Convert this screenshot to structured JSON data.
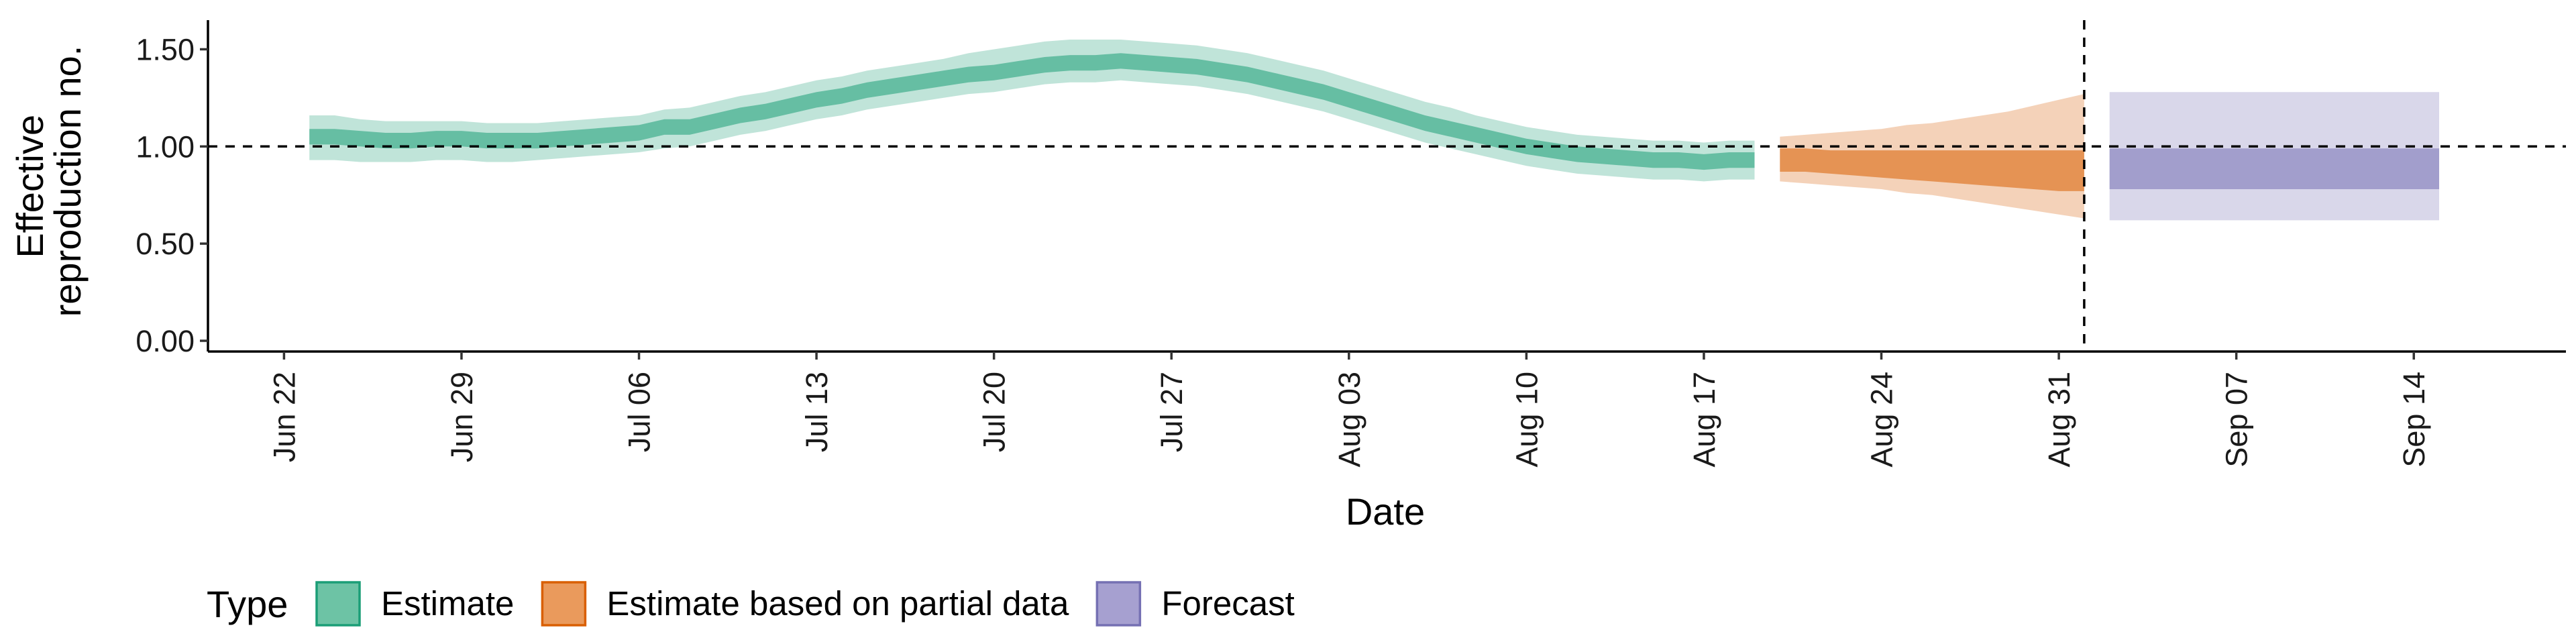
{
  "chart_data": {
    "type": "area",
    "xlabel": "Date",
    "ylabel": [
      "Effective",
      "reproduction no."
    ],
    "ylim": [
      0,
      1.65
    ],
    "y_ticks": [
      {
        "value": 0.0,
        "label": "0.00"
      },
      {
        "value": 0.5,
        "label": "0.50"
      },
      {
        "value": 1.0,
        "label": "1.00"
      },
      {
        "value": 1.5,
        "label": "1.50"
      }
    ],
    "x_ticks": [
      {
        "date": "2020-06-22",
        "label": "Jun 22"
      },
      {
        "date": "2020-06-29",
        "label": "Jun 29"
      },
      {
        "date": "2020-07-06",
        "label": "Jul 06"
      },
      {
        "date": "2020-07-13",
        "label": "Jul 13"
      },
      {
        "date": "2020-07-20",
        "label": "Jul 20"
      },
      {
        "date": "2020-07-27",
        "label": "Jul 27"
      },
      {
        "date": "2020-08-03",
        "label": "Aug 03"
      },
      {
        "date": "2020-08-10",
        "label": "Aug 10"
      },
      {
        "date": "2020-08-17",
        "label": "Aug 17"
      },
      {
        "date": "2020-08-24",
        "label": "Aug 24"
      },
      {
        "date": "2020-08-31",
        "label": "Aug 31"
      },
      {
        "date": "2020-09-07",
        "label": "Sep 07"
      },
      {
        "date": "2020-09-14",
        "label": "Sep 14"
      }
    ],
    "xlim": [
      "2020-06-19",
      "2020-09-20"
    ],
    "hline": 1.0,
    "vline": "2020-09-01",
    "legend": {
      "title": "Type",
      "position": "bottom-left",
      "items": [
        {
          "label": "Estimate",
          "fill": "#6dc3a5",
          "border": "#1b9e77"
        },
        {
          "label": "Estimate based on partial data",
          "fill": "#ea9a5c",
          "border": "#d95f02"
        },
        {
          "label": "Forecast",
          "fill": "#a6a0d0",
          "border": "#7570b3"
        }
      ]
    },
    "series": [
      {
        "name": "Estimate",
        "color": "#1b9e77",
        "dates": [
          "2020-06-23",
          "2020-06-24",
          "2020-06-25",
          "2020-06-26",
          "2020-06-27",
          "2020-06-28",
          "2020-06-29",
          "2020-06-30",
          "2020-07-01",
          "2020-07-02",
          "2020-07-03",
          "2020-07-04",
          "2020-07-05",
          "2020-07-06",
          "2020-07-07",
          "2020-07-08",
          "2020-07-09",
          "2020-07-10",
          "2020-07-11",
          "2020-07-12",
          "2020-07-13",
          "2020-07-14",
          "2020-07-15",
          "2020-07-16",
          "2020-07-17",
          "2020-07-18",
          "2020-07-19",
          "2020-07-20",
          "2020-07-21",
          "2020-07-22",
          "2020-07-23",
          "2020-07-24",
          "2020-07-25",
          "2020-07-26",
          "2020-07-27",
          "2020-07-28",
          "2020-07-29",
          "2020-07-30",
          "2020-07-31",
          "2020-08-01",
          "2020-08-02",
          "2020-08-03",
          "2020-08-04",
          "2020-08-05",
          "2020-08-06",
          "2020-08-07",
          "2020-08-08",
          "2020-08-09",
          "2020-08-10",
          "2020-08-11",
          "2020-08-12",
          "2020-08-13",
          "2020-08-14",
          "2020-08-15",
          "2020-08-16",
          "2020-08-17",
          "2020-08-18",
          "2020-08-19"
        ],
        "median": [
          1.05,
          1.05,
          1.04,
          1.03,
          1.03,
          1.04,
          1.04,
          1.03,
          1.03,
          1.03,
          1.04,
          1.05,
          1.06,
          1.07,
          1.1,
          1.1,
          1.13,
          1.16,
          1.18,
          1.21,
          1.24,
          1.26,
          1.29,
          1.31,
          1.33,
          1.35,
          1.37,
          1.38,
          1.4,
          1.42,
          1.43,
          1.43,
          1.44,
          1.43,
          1.42,
          1.41,
          1.39,
          1.37,
          1.34,
          1.31,
          1.28,
          1.24,
          1.2,
          1.16,
          1.12,
          1.09,
          1.06,
          1.03,
          1.0,
          0.98,
          0.96,
          0.95,
          0.94,
          0.93,
          0.93,
          0.92,
          0.93,
          0.93
        ],
        "lower_50": [
          1.01,
          1.01,
          1.0,
          0.99,
          0.99,
          1.0,
          1.0,
          0.99,
          0.99,
          0.99,
          1.0,
          1.01,
          1.02,
          1.03,
          1.06,
          1.06,
          1.09,
          1.12,
          1.14,
          1.17,
          1.2,
          1.22,
          1.25,
          1.27,
          1.29,
          1.31,
          1.33,
          1.34,
          1.36,
          1.38,
          1.39,
          1.39,
          1.4,
          1.39,
          1.38,
          1.37,
          1.35,
          1.33,
          1.3,
          1.27,
          1.24,
          1.2,
          1.16,
          1.12,
          1.08,
          1.05,
          1.02,
          0.99,
          0.96,
          0.94,
          0.92,
          0.91,
          0.9,
          0.89,
          0.89,
          0.88,
          0.89,
          0.89
        ],
        "upper_50": [
          1.09,
          1.09,
          1.08,
          1.07,
          1.07,
          1.08,
          1.08,
          1.07,
          1.07,
          1.07,
          1.08,
          1.09,
          1.1,
          1.11,
          1.14,
          1.14,
          1.17,
          1.2,
          1.22,
          1.25,
          1.28,
          1.3,
          1.33,
          1.35,
          1.37,
          1.39,
          1.41,
          1.42,
          1.44,
          1.46,
          1.47,
          1.47,
          1.48,
          1.47,
          1.46,
          1.45,
          1.43,
          1.41,
          1.38,
          1.35,
          1.32,
          1.28,
          1.24,
          1.2,
          1.16,
          1.13,
          1.1,
          1.07,
          1.04,
          1.02,
          1.0,
          0.99,
          0.98,
          0.97,
          0.97,
          0.96,
          0.97,
          0.97
        ],
        "lower_90": [
          0.93,
          0.93,
          0.92,
          0.92,
          0.92,
          0.93,
          0.93,
          0.92,
          0.92,
          0.93,
          0.94,
          0.95,
          0.96,
          0.97,
          0.99,
          1.0,
          1.03,
          1.06,
          1.08,
          1.11,
          1.14,
          1.16,
          1.19,
          1.21,
          1.23,
          1.25,
          1.27,
          1.28,
          1.3,
          1.32,
          1.33,
          1.33,
          1.34,
          1.33,
          1.32,
          1.31,
          1.29,
          1.27,
          1.24,
          1.21,
          1.18,
          1.14,
          1.1,
          1.06,
          1.02,
          0.99,
          0.96,
          0.93,
          0.9,
          0.88,
          0.86,
          0.85,
          0.84,
          0.83,
          0.83,
          0.82,
          0.83,
          0.83
        ],
        "upper_90": [
          1.16,
          1.16,
          1.14,
          1.13,
          1.13,
          1.13,
          1.13,
          1.12,
          1.12,
          1.12,
          1.13,
          1.14,
          1.15,
          1.16,
          1.19,
          1.2,
          1.23,
          1.26,
          1.28,
          1.31,
          1.34,
          1.36,
          1.39,
          1.41,
          1.43,
          1.45,
          1.48,
          1.5,
          1.52,
          1.54,
          1.55,
          1.55,
          1.55,
          1.54,
          1.53,
          1.52,
          1.5,
          1.48,
          1.45,
          1.42,
          1.39,
          1.35,
          1.31,
          1.27,
          1.23,
          1.2,
          1.16,
          1.13,
          1.1,
          1.08,
          1.06,
          1.05,
          1.04,
          1.03,
          1.03,
          1.02,
          1.03,
          1.03
        ]
      },
      {
        "name": "Estimate based on partial data",
        "color": "#d95f02",
        "dates": [
          "2020-08-20",
          "2020-08-21",
          "2020-08-22",
          "2020-08-23",
          "2020-08-24",
          "2020-08-25",
          "2020-08-26",
          "2020-08-27",
          "2020-08-28",
          "2020-08-29",
          "2020-08-30",
          "2020-08-31",
          "2020-09-01"
        ],
        "median": [
          0.93,
          0.93,
          0.92,
          0.92,
          0.91,
          0.91,
          0.9,
          0.9,
          0.89,
          0.89,
          0.88,
          0.88,
          0.87
        ],
        "lower_50": [
          0.87,
          0.87,
          0.86,
          0.85,
          0.84,
          0.83,
          0.82,
          0.81,
          0.8,
          0.79,
          0.78,
          0.77,
          0.77
        ],
        "upper_50": [
          0.99,
          0.99,
          0.98,
          0.98,
          0.98,
          0.98,
          0.98,
          0.98,
          0.98,
          0.98,
          0.98,
          0.98,
          0.98
        ],
        "lower_90": [
          0.82,
          0.81,
          0.8,
          0.79,
          0.78,
          0.76,
          0.75,
          0.73,
          0.71,
          0.69,
          0.67,
          0.65,
          0.63
        ],
        "upper_90": [
          1.05,
          1.06,
          1.07,
          1.08,
          1.09,
          1.11,
          1.12,
          1.14,
          1.16,
          1.18,
          1.21,
          1.24,
          1.27
        ]
      },
      {
        "name": "Forecast",
        "color": "#7570b3",
        "dates": [
          "2020-09-02",
          "2020-09-15"
        ],
        "median": [
          0.88,
          0.88
        ],
        "lower_50": [
          0.78,
          0.78
        ],
        "upper_50": [
          0.99,
          0.99
        ],
        "lower_90": [
          0.62,
          0.62
        ],
        "upper_90": [
          1.28,
          1.28
        ]
      }
    ]
  }
}
